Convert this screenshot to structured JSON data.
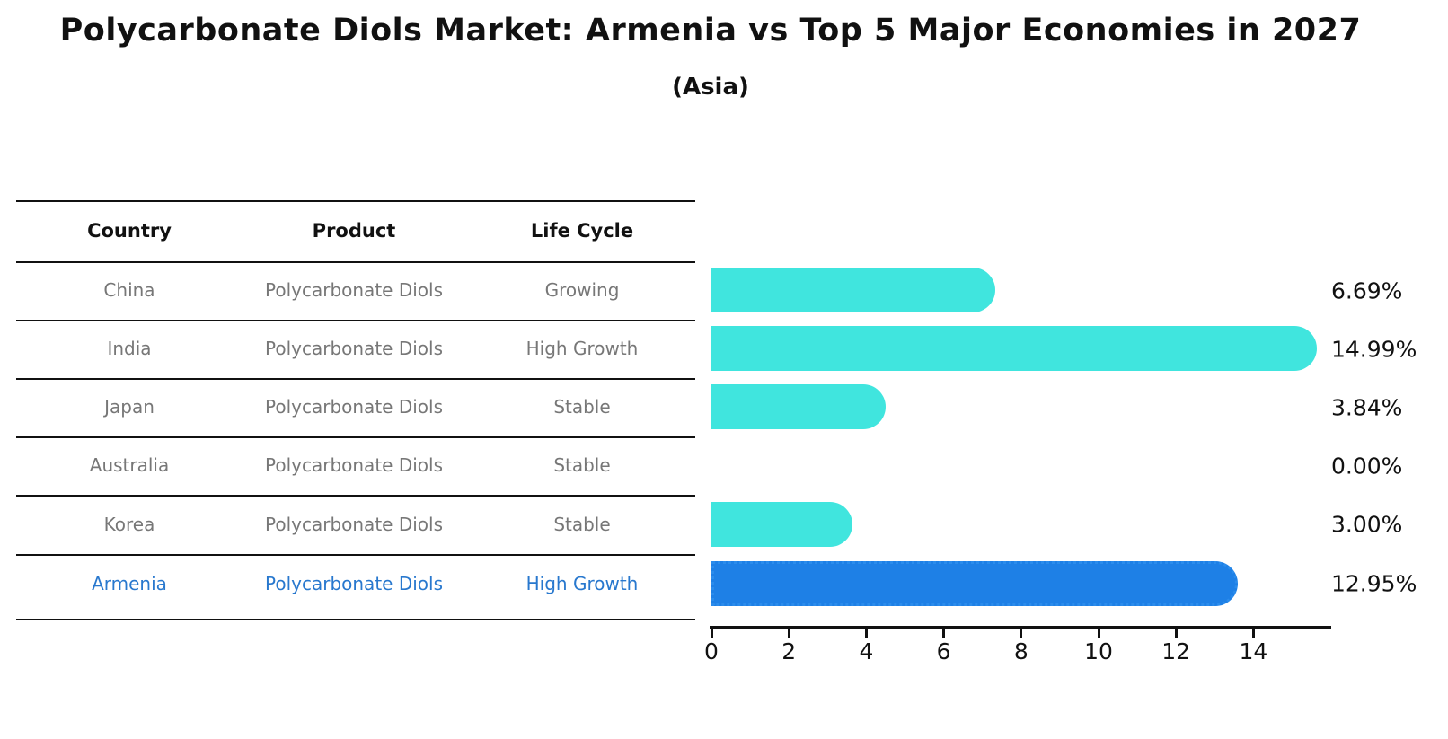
{
  "header": {
    "title": "Polycarbonate Diols Market: Armenia vs Top 5 Major Economies in 2027",
    "subtitle": "(Asia)"
  },
  "table": {
    "columns": [
      "Country",
      "Product",
      "Life Cycle"
    ],
    "rows": [
      {
        "country": "China",
        "product": "Polycarbonate Diols",
        "life_cycle": "Growing",
        "highlight": false
      },
      {
        "country": "India",
        "product": "Polycarbonate Diols",
        "life_cycle": "High Growth",
        "highlight": false
      },
      {
        "country": "Japan",
        "product": "Polycarbonate Diols",
        "life_cycle": "Stable",
        "highlight": false
      },
      {
        "country": "Australia",
        "product": "Polycarbonate Diols",
        "life_cycle": "Stable",
        "highlight": false
      },
      {
        "country": "Korea",
        "product": "Polycarbonate Diols",
        "life_cycle": "Stable",
        "highlight": false
      },
      {
        "country": "Armenia",
        "product": "Polycarbonate Diols",
        "life_cycle": "High Growth",
        "highlight": true
      }
    ]
  },
  "chart_data": {
    "type": "bar",
    "orientation": "horizontal",
    "title": "Polycarbonate Diols Market: Armenia vs Top 5 Major Economies in 2027 (Asia)",
    "categories": [
      "China",
      "India",
      "Japan",
      "Australia",
      "Korea",
      "Armenia"
    ],
    "values": [
      6.69,
      14.99,
      3.84,
      0.0,
      3.0,
      12.95
    ],
    "labels": [
      "6.69%",
      "14.99%",
      "3.84%",
      "0.00%",
      "3.00%",
      "12.95%"
    ],
    "xticks": [
      0,
      2,
      4,
      6,
      8,
      10,
      12,
      14
    ],
    "xlim": [
      0,
      16
    ],
    "grid": false,
    "legend": false,
    "bar_color": "#40E5DE",
    "highlight_index": 5,
    "highlight_color": "#1E80E6",
    "highlight_border_color": "#2B8CEC"
  },
  "colors": {
    "row_text": "#777777",
    "highlight_text": "#2878CE",
    "axis": "#111111",
    "background": "#FFFFFF"
  }
}
